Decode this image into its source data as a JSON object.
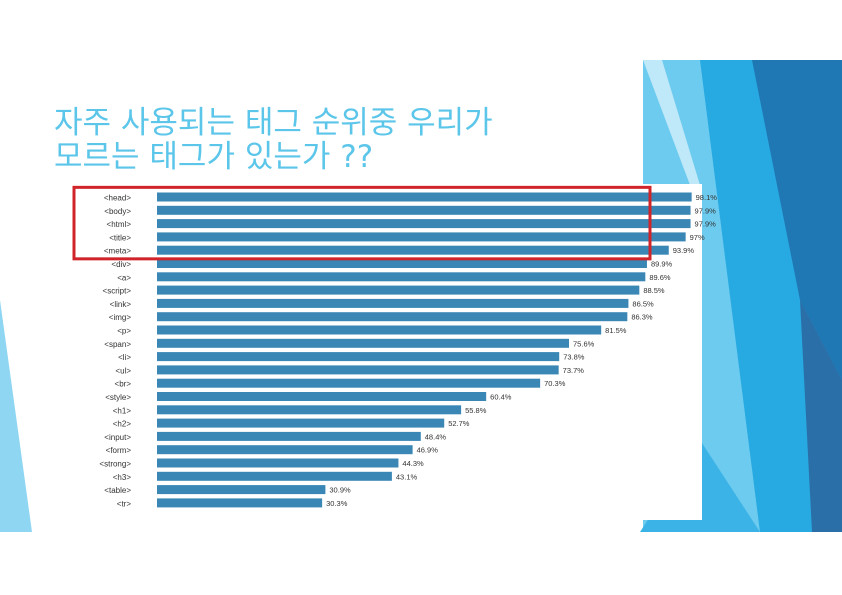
{
  "slide": {
    "title_line1": "자주 사용되는 태그 순위중 우리가",
    "title_line2": "모르는 태그가 있는가 ??"
  },
  "colors": {
    "title": "#5bc6ea",
    "bar": "#3a87b6",
    "highlight_box": "#d0242a",
    "deco_dark": "#1f77b3",
    "deco_mid": "#27a9e1",
    "deco_light": "#6ccbef"
  },
  "chart_data": {
    "type": "bar",
    "orientation": "horizontal",
    "categories": [
      "<head>",
      "<body>",
      "<html>",
      "<title>",
      "<meta>",
      "<div>",
      "<a>",
      "<script>",
      "<link>",
      "<img>",
      "<p>",
      "<span>",
      "<li>",
      "<ul>",
      "<br>",
      "<style>",
      "<h1>",
      "<h2>",
      "<input>",
      "<form>",
      "<strong>",
      "<h3>",
      "<table>",
      "<tr>"
    ],
    "values": [
      98.1,
      97.9,
      97.9,
      97,
      93.9,
      89.9,
      89.6,
      88.5,
      86.5,
      86.3,
      81.5,
      75.6,
      73.8,
      73.7,
      70.3,
      60.4,
      55.8,
      52.7,
      48.4,
      46.9,
      44.3,
      43.1,
      30.9,
      30.3
    ],
    "value_labels": [
      "98.1%",
      "97.9%",
      "97.9%",
      "97%",
      "93.9%",
      "89.9%",
      "89.6%",
      "88.5%",
      "86.5%",
      "86.3%",
      "81.5%",
      "75.6%",
      "73.8%",
      "73.7%",
      "70.3%",
      "60.4%",
      "55.8%",
      "52.7%",
      "48.4%",
      "46.9%",
      "44.3%",
      "43.1%",
      "30.9%",
      "30.3%"
    ],
    "highlighted_categories": [
      "<head>",
      "<body>",
      "<html>",
      "<title>",
      "<meta>"
    ],
    "xlim": [
      0,
      100
    ],
    "grid": false,
    "legend": "none"
  }
}
